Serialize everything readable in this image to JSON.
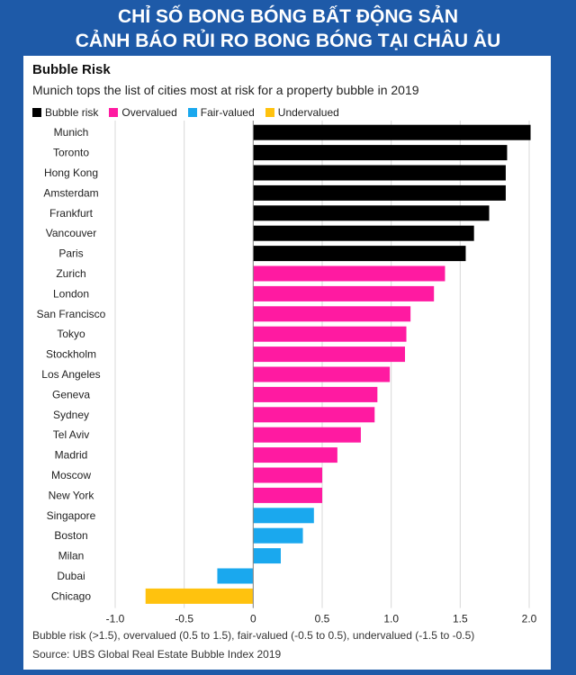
{
  "banner": {
    "line1": "CHỈ SỐ BONG BÓNG BẤT ĐỘNG SẢN",
    "line2": "CẢNH BÁO RỦI RO BONG BÓNG TẠI CHÂU ÂU"
  },
  "colors": {
    "bubble_risk": "#000000",
    "overvalued": "#ff1aa1",
    "fair_valued": "#1aa8ee",
    "undervalued": "#ffc20e"
  },
  "chart_data": {
    "type": "bar",
    "orientation": "horizontal",
    "title": "Bubble Risk",
    "subtitle": "Munich tops the list of cities most at risk for a property bubble in 2019",
    "legend": [
      {
        "key": "bubble_risk",
        "label": "Bubble risk"
      },
      {
        "key": "overvalued",
        "label": "Overvalued"
      },
      {
        "key": "fair_valued",
        "label": "Fair-valued"
      },
      {
        "key": "undervalued",
        "label": "Undervalued"
      }
    ],
    "categories": [
      "Munich",
      "Toronto",
      "Hong Kong",
      "Amsterdam",
      "Frankfurt",
      "Vancouver",
      "Paris",
      "Zurich",
      "London",
      "San Francisco",
      "Tokyo",
      "Stockholm",
      "Los Angeles",
      "Geneva",
      "Sydney",
      "Tel Aviv",
      "Madrid",
      "Moscow",
      "New York",
      "Singapore",
      "Boston",
      "Milan",
      "Dubai",
      "Chicago"
    ],
    "values": [
      2.01,
      1.84,
      1.83,
      1.83,
      1.71,
      1.6,
      1.54,
      1.39,
      1.31,
      1.14,
      1.11,
      1.1,
      0.99,
      0.9,
      0.88,
      0.78,
      0.61,
      0.5,
      0.5,
      0.44,
      0.36,
      0.2,
      -0.26,
      -0.78
    ],
    "categories_class": [
      "bubble_risk",
      "bubble_risk",
      "bubble_risk",
      "bubble_risk",
      "bubble_risk",
      "bubble_risk",
      "bubble_risk",
      "overvalued",
      "overvalued",
      "overvalued",
      "overvalued",
      "overvalued",
      "overvalued",
      "overvalued",
      "overvalued",
      "overvalued",
      "overvalued",
      "overvalued",
      "overvalued",
      "fair_valued",
      "fair_valued",
      "fair_valued",
      "fair_valued",
      "undervalued"
    ],
    "xlim": [
      -1.0,
      2.0
    ],
    "xticks": [
      -1.0,
      -0.5,
      0,
      0.5,
      1.0,
      1.5,
      2.0
    ],
    "xtick_labels": [
      "-1.0",
      "-0.5",
      "0",
      "0.5",
      "1.0",
      "1.5",
      "2.0"
    ],
    "grid": true,
    "footnote": "Bubble risk (>1.5), overvalued (0.5 to 1.5), fair-valued (-0.5 to 0.5), undervalued (-1.5 to -0.5)",
    "source": "Source: UBS Global Real Estate Bubble Index 2019"
  }
}
